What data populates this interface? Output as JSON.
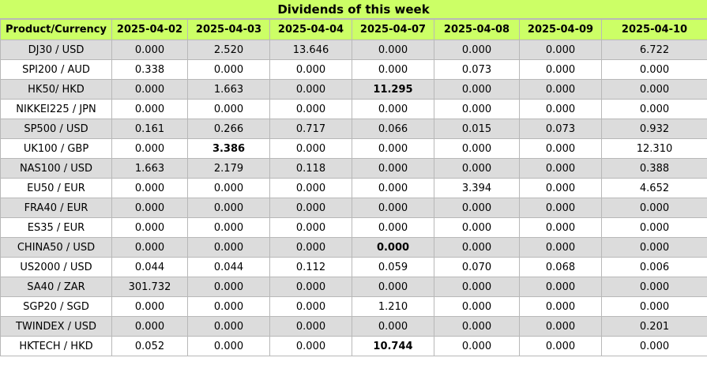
{
  "title": "Dividends of this week",
  "columns": [
    "Product/Currency",
    "2025-04-02",
    "2025-04-03",
    "2025-04-04",
    "2025-04-07",
    "2025-04-08",
    "2025-04-09",
    "2025-04-10"
  ],
  "rows": [
    {
      "product": "DJ30 / USD",
      "values": [
        "0.000",
        "2.520",
        "13.646",
        "0.000",
        "0.000",
        "0.000",
        "6.722"
      ],
      "bold": []
    },
    {
      "product": "SPI200 / AUD",
      "values": [
        "0.338",
        "0.000",
        "0.000",
        "0.000",
        "0.073",
        "0.000",
        "0.000"
      ],
      "bold": []
    },
    {
      "product": "HK50/ HKD",
      "values": [
        "0.000",
        "1.663",
        "0.000",
        "11.295",
        "0.000",
        "0.000",
        "0.000"
      ],
      "bold": [
        3
      ]
    },
    {
      "product": "NIKKEI225 / JPN",
      "values": [
        "0.000",
        "0.000",
        "0.000",
        "0.000",
        "0.000",
        "0.000",
        "0.000"
      ],
      "bold": []
    },
    {
      "product": "SP500 / USD",
      "values": [
        "0.161",
        "0.266",
        "0.717",
        "0.066",
        "0.015",
        "0.073",
        "0.932"
      ],
      "bold": []
    },
    {
      "product": "UK100 / GBP",
      "values": [
        "0.000",
        "3.386",
        "0.000",
        "0.000",
        "0.000",
        "0.000",
        "12.310"
      ],
      "bold": [
        1
      ]
    },
    {
      "product": "NAS100 / USD",
      "values": [
        "1.663",
        "2.179",
        "0.118",
        "0.000",
        "0.000",
        "0.000",
        "0.388"
      ],
      "bold": []
    },
    {
      "product": "EU50 / EUR",
      "values": [
        "0.000",
        "0.000",
        "0.000",
        "0.000",
        "3.394",
        "0.000",
        "4.652"
      ],
      "bold": []
    },
    {
      "product": "FRA40 / EUR",
      "values": [
        "0.000",
        "0.000",
        "0.000",
        "0.000",
        "0.000",
        "0.000",
        "0.000"
      ],
      "bold": []
    },
    {
      "product": "ES35 / EUR",
      "values": [
        "0.000",
        "0.000",
        "0.000",
        "0.000",
        "0.000",
        "0.000",
        "0.000"
      ],
      "bold": []
    },
    {
      "product": "CHINA50 / USD",
      "values": [
        "0.000",
        "0.000",
        "0.000",
        "0.000",
        "0.000",
        "0.000",
        "0.000"
      ],
      "bold": [
        3
      ]
    },
    {
      "product": "US2000 / USD",
      "values": [
        "0.044",
        "0.044",
        "0.112",
        "0.059",
        "0.070",
        "0.068",
        "0.006"
      ],
      "bold": []
    },
    {
      "product": "SA40 / ZAR",
      "values": [
        "301.732",
        "0.000",
        "0.000",
        "0.000",
        "0.000",
        "0.000",
        "0.000"
      ],
      "bold": []
    },
    {
      "product": "SGP20 / SGD",
      "values": [
        "0.000",
        "0.000",
        "0.000",
        "1.210",
        "0.000",
        "0.000",
        "0.000"
      ],
      "bold": []
    },
    {
      "product": "TWINDEX / USD",
      "values": [
        "0.000",
        "0.000",
        "0.000",
        "0.000",
        "0.000",
        "0.000",
        "0.201"
      ],
      "bold": []
    },
    {
      "product": "HKTECH / HKD",
      "values": [
        "0.052",
        "0.000",
        "0.000",
        "10.744",
        "0.000",
        "0.000",
        "0.000"
      ],
      "bold": [
        3
      ]
    }
  ],
  "colors": {
    "header_bg": "#ccff66",
    "odd_row_bg": "#dcdcdc",
    "even_row_bg": "#ffffff",
    "grid": "#b8b8b8"
  }
}
